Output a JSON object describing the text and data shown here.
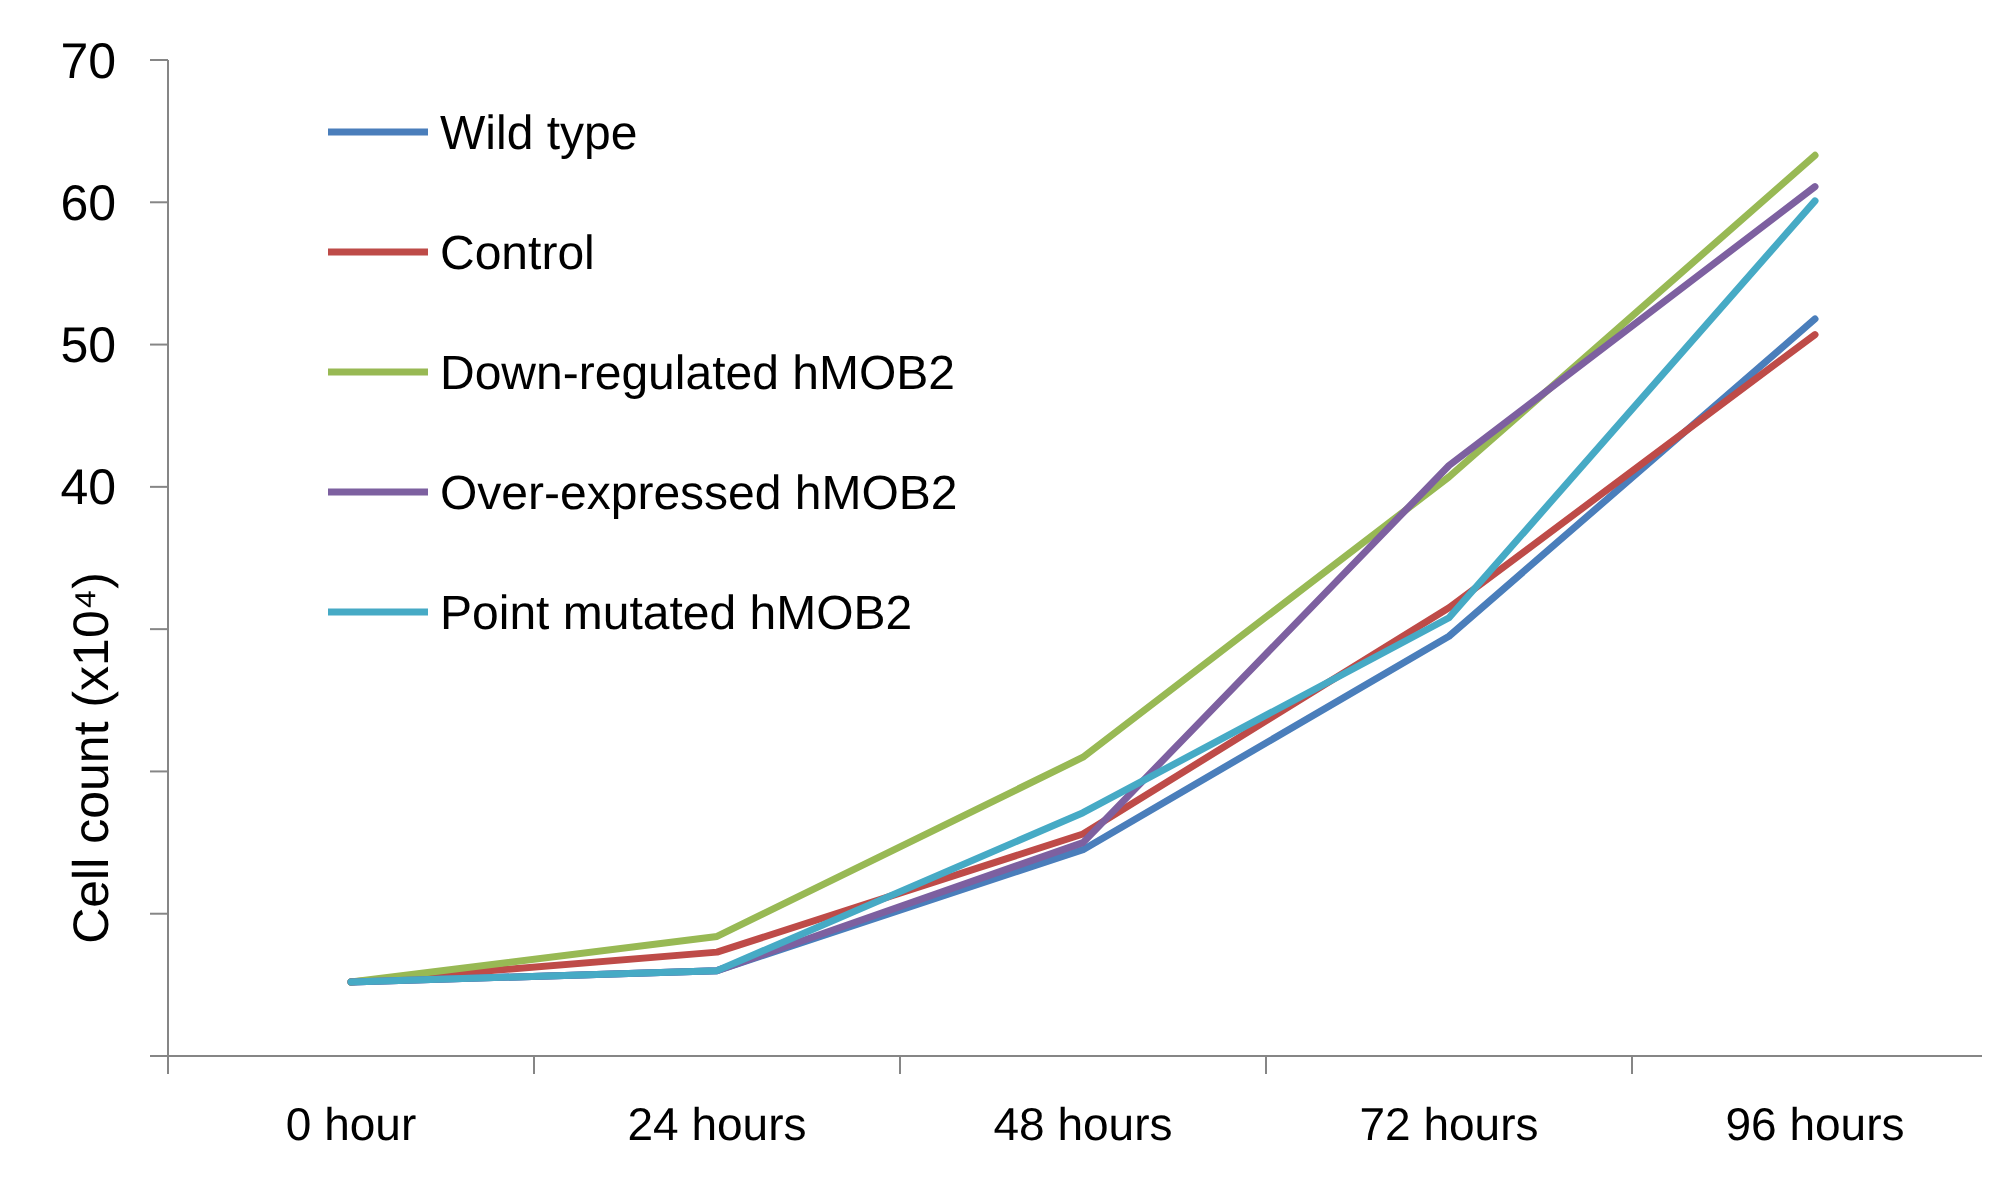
{
  "chart_data": {
    "type": "line",
    "ylabel": "Cell count (x10⁴)",
    "categories": [
      "0 hour",
      "24 hours",
      "48 hours",
      "72 hours",
      "96 hours"
    ],
    "series": [
      {
        "name": "Wild type",
        "color": "#4a7ebb",
        "values": [
          5.2,
          6.0,
          14.5,
          29.5,
          51.8
        ]
      },
      {
        "name": "Control",
        "color": "#be4b48",
        "values": [
          5.2,
          7.3,
          15.6,
          31.5,
          50.7
        ]
      },
      {
        "name": "Down-regulated hMOB2",
        "color": "#98b954",
        "values": [
          5.2,
          8.4,
          21.0,
          40.7,
          63.3
        ]
      },
      {
        "name": "Over-expressed hMOB2",
        "color": "#7d60a0",
        "values": [
          5.2,
          6.0,
          15.0,
          41.5,
          61.1
        ]
      },
      {
        "name": "Point mutated hMOB2",
        "color": "#46aac5",
        "values": [
          5.2,
          6.0,
          17.1,
          30.8,
          60.1
        ]
      }
    ],
    "ylim": [
      0,
      70
    ],
    "yticks": [
      {
        "value": 0,
        "label": null
      },
      {
        "value": 10,
        "label": null
      },
      {
        "value": 20,
        "label": null
      },
      {
        "value": 30,
        "label": null
      },
      40,
      50,
      60,
      70
    ],
    "grid": false,
    "legend": "top left",
    "marker": "none",
    "line_style": "solid"
  }
}
